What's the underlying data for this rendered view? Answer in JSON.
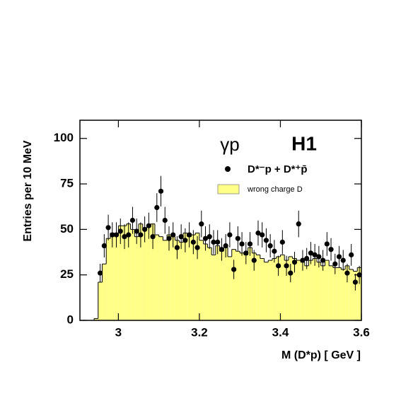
{
  "chart_data": {
    "type": "histogram",
    "annotations": [
      "γp",
      "H1"
    ],
    "xlabel": "M (D*p) [ GeV ]",
    "ylabel": "Entries per 10 MeV",
    "xlim": [
      2.905,
      3.6
    ],
    "ylim": [
      0,
      110
    ],
    "xticks": [
      3,
      3.2,
      3.4,
      3.6
    ],
    "yticks": [
      0,
      25,
      50,
      75,
      100
    ],
    "series": [
      {
        "name": "D*⁻p + D*⁺p̄",
        "type": "scatter",
        "color": "#000000",
        "x": [
          2.955,
          2.965,
          2.975,
          2.985,
          2.995,
          3.005,
          3.015,
          3.025,
          3.035,
          3.045,
          3.055,
          3.065,
          3.075,
          3.085,
          3.095,
          3.105,
          3.115,
          3.125,
          3.135,
          3.145,
          3.155,
          3.165,
          3.175,
          3.185,
          3.195,
          3.205,
          3.215,
          3.225,
          3.235,
          3.245,
          3.255,
          3.265,
          3.275,
          3.285,
          3.295,
          3.305,
          3.315,
          3.325,
          3.335,
          3.345,
          3.355,
          3.365,
          3.375,
          3.385,
          3.395,
          3.405,
          3.415,
          3.425,
          3.435,
          3.445,
          3.455,
          3.465,
          3.475,
          3.485,
          3.495,
          3.505,
          3.515,
          3.525,
          3.535,
          3.545,
          3.555,
          3.565,
          3.575,
          3.585,
          3.595
        ],
        "values": [
          26,
          41,
          51,
          47,
          47,
          49,
          46,
          47,
          55,
          49,
          47,
          50,
          52,
          46,
          62,
          71,
          55,
          45,
          47,
          40,
          46,
          44,
          47,
          43,
          40,
          53,
          45,
          46,
          43,
          43,
          39,
          41,
          47,
          28,
          45,
          42,
          37,
          42,
          33,
          48,
          47,
          44,
          41,
          38,
          30,
          43,
          30,
          26,
          32,
          53,
          33,
          34,
          37,
          36,
          35,
          33,
          42,
          39,
          31,
          35,
          33,
          26,
          36,
          21,
          25
        ],
        "errors": [
          5.1,
          6.4,
          7.1,
          6.9,
          6.9,
          7,
          6.8,
          6.9,
          7.4,
          7,
          6.9,
          7.1,
          7.2,
          6.8,
          7.9,
          8.4,
          7.4,
          6.7,
          6.9,
          6.3,
          6.8,
          6.6,
          6.9,
          6.6,
          6.3,
          7.3,
          6.7,
          6.8,
          6.6,
          6.6,
          6.2,
          6.4,
          6.9,
          5.3,
          6.7,
          6.5,
          6.1,
          6.5,
          5.7,
          6.9,
          6.9,
          6.6,
          6.4,
          6.2,
          5.5,
          6.6,
          5.5,
          5.1,
          5.7,
          7.3,
          5.7,
          5.8,
          6.1,
          6,
          5.9,
          5.7,
          6.5,
          6.2,
          5.6,
          5.9,
          5.7,
          5.1,
          6,
          4.6,
          5
        ]
      },
      {
        "name": "wrong charge D",
        "type": "histogram",
        "color": "#ffff88",
        "bins": [
          2.94,
          2.95,
          2.96,
          2.97,
          2.98,
          2.99,
          3.0,
          3.01,
          3.02,
          3.03,
          3.04,
          3.05,
          3.06,
          3.07,
          3.08,
          3.09,
          3.1,
          3.11,
          3.12,
          3.13,
          3.14,
          3.15,
          3.16,
          3.17,
          3.18,
          3.19,
          3.2,
          3.21,
          3.22,
          3.23,
          3.24,
          3.25,
          3.26,
          3.27,
          3.28,
          3.29,
          3.3,
          3.31,
          3.32,
          3.33,
          3.34,
          3.35,
          3.36,
          3.37,
          3.38,
          3.39,
          3.4,
          3.41,
          3.42,
          3.43,
          3.44,
          3.45,
          3.46,
          3.47,
          3.48,
          3.49,
          3.5,
          3.51,
          3.52,
          3.53,
          3.54,
          3.55,
          3.56,
          3.57,
          3.58,
          3.59,
          3.6
        ],
        "values": [
          1,
          21,
          31,
          45,
          48,
          47,
          52,
          52,
          53,
          50,
          46,
          53,
          50,
          52,
          53,
          47,
          46,
          44,
          47,
          46,
          44,
          43,
          48,
          46,
          47,
          48,
          44,
          42,
          40,
          36,
          41,
          38,
          40,
          35,
          39,
          38,
          37,
          36,
          40,
          37,
          36,
          34,
          32,
          33,
          34,
          35,
          36,
          33,
          35,
          34,
          33,
          32,
          30,
          33,
          34,
          32,
          30,
          33,
          30,
          29,
          29,
          28,
          30,
          28,
          27,
          29
        ]
      }
    ]
  }
}
